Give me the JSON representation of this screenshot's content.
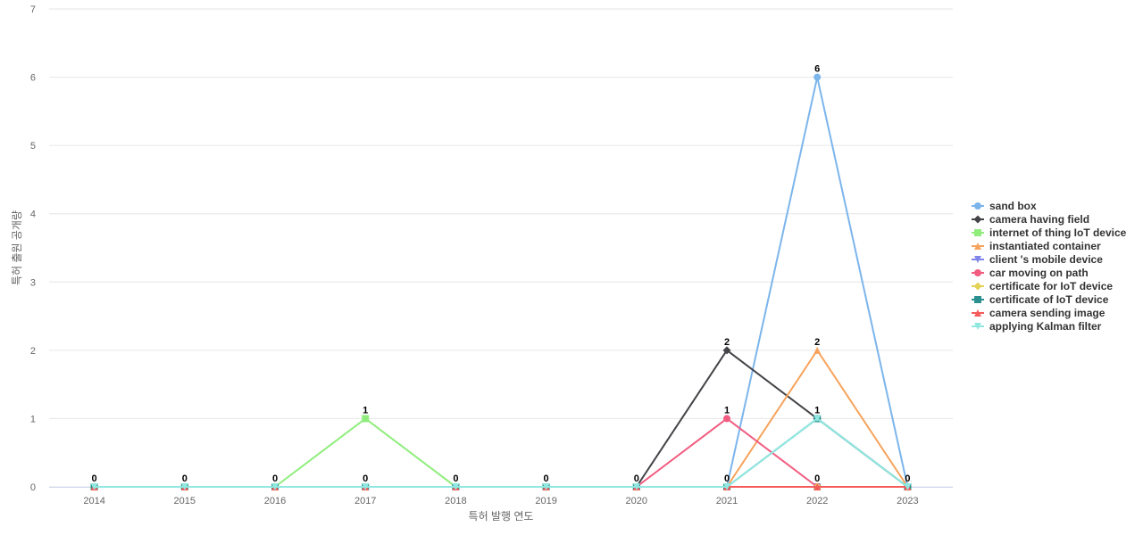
{
  "chart_data": {
    "type": "line",
    "xlabel": "특허 발행 연도",
    "ylabel": "특허 출원 공개량",
    "ylim": [
      0,
      7
    ],
    "yticks": [
      0,
      1,
      2,
      3,
      4,
      5,
      6,
      7
    ],
    "grid": true,
    "legend_position": "right",
    "categories": [
      "2014",
      "2015",
      "2016",
      "2017",
      "2018",
      "2019",
      "2020",
      "2021",
      "2022",
      "2023"
    ],
    "series": [
      {
        "name": "sand box",
        "color": "#7cb5ec",
        "marker": "circle",
        "values": [
          0,
          0,
          0,
          0,
          0,
          0,
          0,
          0,
          6,
          0
        ]
      },
      {
        "name": "camera having field",
        "color": "#434348",
        "marker": "diamond",
        "values": [
          0,
          0,
          0,
          0,
          0,
          0,
          0,
          2,
          1,
          0
        ]
      },
      {
        "name": "internet of thing IoT device",
        "color": "#90ed7d",
        "marker": "square",
        "values": [
          0,
          0,
          0,
          1,
          0,
          0,
          0,
          0,
          0,
          0
        ]
      },
      {
        "name": "instantiated container",
        "color": "#f7a35c",
        "marker": "triangle",
        "values": [
          0,
          0,
          0,
          0,
          0,
          0,
          0,
          0,
          2,
          0
        ]
      },
      {
        "name": "client 's mobile device",
        "color": "#8085e9",
        "marker": "triangle-down",
        "values": [
          0,
          0,
          0,
          0,
          0,
          0,
          0,
          0,
          0,
          0
        ]
      },
      {
        "name": "car moving on path",
        "color": "#f15c80",
        "marker": "circle",
        "values": [
          0,
          0,
          0,
          0,
          0,
          0,
          0,
          1,
          0,
          0
        ]
      },
      {
        "name": "certificate for IoT device",
        "color": "#e4d354",
        "marker": "diamond",
        "values": [
          0,
          0,
          0,
          0,
          0,
          0,
          0,
          0,
          0,
          0
        ]
      },
      {
        "name": "certificate of IoT device",
        "color": "#2b908f",
        "marker": "square",
        "values": [
          0,
          0,
          0,
          0,
          0,
          0,
          0,
          0,
          1,
          0
        ]
      },
      {
        "name": "camera sending image",
        "color": "#f45b5b",
        "marker": "triangle",
        "values": [
          0,
          0,
          0,
          0,
          0,
          0,
          0,
          0,
          0,
          0
        ]
      },
      {
        "name": "applying Kalman filter",
        "color": "#91e8e1",
        "marker": "triangle-down",
        "values": [
          0,
          0,
          0,
          0,
          0,
          0,
          0,
          0,
          1,
          0
        ]
      }
    ]
  }
}
